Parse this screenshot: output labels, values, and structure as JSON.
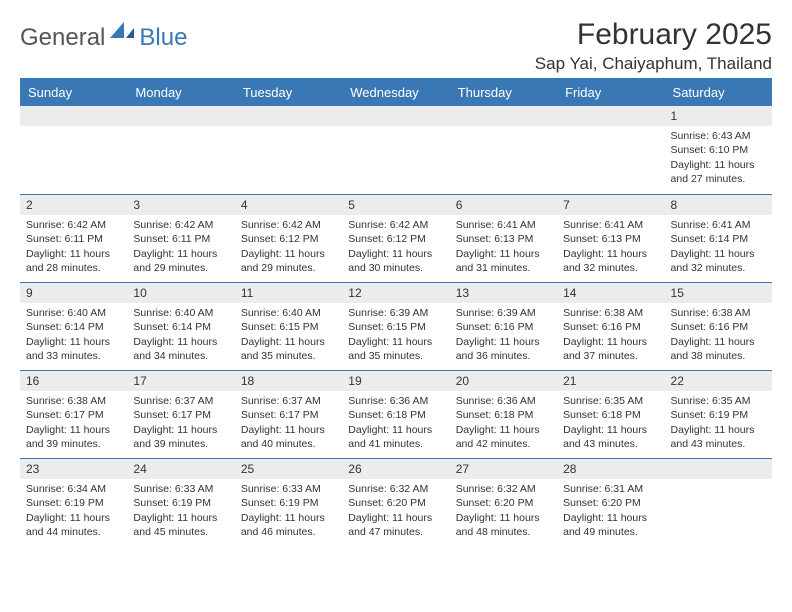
{
  "logo": {
    "general": "General",
    "blue": "Blue"
  },
  "header": {
    "month_title": "February 2025",
    "location": "Sap Yai, Chaiyaphum, Thailand"
  },
  "colors": {
    "brand": "#3a78b5",
    "daynum_bg": "#ececec",
    "text": "#333333",
    "bg": "#ffffff"
  },
  "typography": {
    "month_title_fontsize": 30,
    "location_fontsize": 17,
    "dayhead_fontsize": 13,
    "daynum_fontsize": 12,
    "body_fontsize": 10.5
  },
  "calendar": {
    "day_headers": [
      "Sunday",
      "Monday",
      "Tuesday",
      "Wednesday",
      "Thursday",
      "Friday",
      "Saturday"
    ],
    "weeks": [
      [
        {
          "empty": true
        },
        {
          "empty": true
        },
        {
          "empty": true
        },
        {
          "empty": true
        },
        {
          "empty": true
        },
        {
          "empty": true
        },
        {
          "daynum": "1",
          "sunrise": "Sunrise: 6:43 AM",
          "sunset": "Sunset: 6:10 PM",
          "daylight": "Daylight: 11 hours and 27 minutes."
        }
      ],
      [
        {
          "daynum": "2",
          "sunrise": "Sunrise: 6:42 AM",
          "sunset": "Sunset: 6:11 PM",
          "daylight": "Daylight: 11 hours and 28 minutes."
        },
        {
          "daynum": "3",
          "sunrise": "Sunrise: 6:42 AM",
          "sunset": "Sunset: 6:11 PM",
          "daylight": "Daylight: 11 hours and 29 minutes."
        },
        {
          "daynum": "4",
          "sunrise": "Sunrise: 6:42 AM",
          "sunset": "Sunset: 6:12 PM",
          "daylight": "Daylight: 11 hours and 29 minutes."
        },
        {
          "daynum": "5",
          "sunrise": "Sunrise: 6:42 AM",
          "sunset": "Sunset: 6:12 PM",
          "daylight": "Daylight: 11 hours and 30 minutes."
        },
        {
          "daynum": "6",
          "sunrise": "Sunrise: 6:41 AM",
          "sunset": "Sunset: 6:13 PM",
          "daylight": "Daylight: 11 hours and 31 minutes."
        },
        {
          "daynum": "7",
          "sunrise": "Sunrise: 6:41 AM",
          "sunset": "Sunset: 6:13 PM",
          "daylight": "Daylight: 11 hours and 32 minutes."
        },
        {
          "daynum": "8",
          "sunrise": "Sunrise: 6:41 AM",
          "sunset": "Sunset: 6:14 PM",
          "daylight": "Daylight: 11 hours and 32 minutes."
        }
      ],
      [
        {
          "daynum": "9",
          "sunrise": "Sunrise: 6:40 AM",
          "sunset": "Sunset: 6:14 PM",
          "daylight": "Daylight: 11 hours and 33 minutes."
        },
        {
          "daynum": "10",
          "sunrise": "Sunrise: 6:40 AM",
          "sunset": "Sunset: 6:14 PM",
          "daylight": "Daylight: 11 hours and 34 minutes."
        },
        {
          "daynum": "11",
          "sunrise": "Sunrise: 6:40 AM",
          "sunset": "Sunset: 6:15 PM",
          "daylight": "Daylight: 11 hours and 35 minutes."
        },
        {
          "daynum": "12",
          "sunrise": "Sunrise: 6:39 AM",
          "sunset": "Sunset: 6:15 PM",
          "daylight": "Daylight: 11 hours and 35 minutes."
        },
        {
          "daynum": "13",
          "sunrise": "Sunrise: 6:39 AM",
          "sunset": "Sunset: 6:16 PM",
          "daylight": "Daylight: 11 hours and 36 minutes."
        },
        {
          "daynum": "14",
          "sunrise": "Sunrise: 6:38 AM",
          "sunset": "Sunset: 6:16 PM",
          "daylight": "Daylight: 11 hours and 37 minutes."
        },
        {
          "daynum": "15",
          "sunrise": "Sunrise: 6:38 AM",
          "sunset": "Sunset: 6:16 PM",
          "daylight": "Daylight: 11 hours and 38 minutes."
        }
      ],
      [
        {
          "daynum": "16",
          "sunrise": "Sunrise: 6:38 AM",
          "sunset": "Sunset: 6:17 PM",
          "daylight": "Daylight: 11 hours and 39 minutes."
        },
        {
          "daynum": "17",
          "sunrise": "Sunrise: 6:37 AM",
          "sunset": "Sunset: 6:17 PM",
          "daylight": "Daylight: 11 hours and 39 minutes."
        },
        {
          "daynum": "18",
          "sunrise": "Sunrise: 6:37 AM",
          "sunset": "Sunset: 6:17 PM",
          "daylight": "Daylight: 11 hours and 40 minutes."
        },
        {
          "daynum": "19",
          "sunrise": "Sunrise: 6:36 AM",
          "sunset": "Sunset: 6:18 PM",
          "daylight": "Daylight: 11 hours and 41 minutes."
        },
        {
          "daynum": "20",
          "sunrise": "Sunrise: 6:36 AM",
          "sunset": "Sunset: 6:18 PM",
          "daylight": "Daylight: 11 hours and 42 minutes."
        },
        {
          "daynum": "21",
          "sunrise": "Sunrise: 6:35 AM",
          "sunset": "Sunset: 6:18 PM",
          "daylight": "Daylight: 11 hours and 43 minutes."
        },
        {
          "daynum": "22",
          "sunrise": "Sunrise: 6:35 AM",
          "sunset": "Sunset: 6:19 PM",
          "daylight": "Daylight: 11 hours and 43 minutes."
        }
      ],
      [
        {
          "daynum": "23",
          "sunrise": "Sunrise: 6:34 AM",
          "sunset": "Sunset: 6:19 PM",
          "daylight": "Daylight: 11 hours and 44 minutes."
        },
        {
          "daynum": "24",
          "sunrise": "Sunrise: 6:33 AM",
          "sunset": "Sunset: 6:19 PM",
          "daylight": "Daylight: 11 hours and 45 minutes."
        },
        {
          "daynum": "25",
          "sunrise": "Sunrise: 6:33 AM",
          "sunset": "Sunset: 6:19 PM",
          "daylight": "Daylight: 11 hours and 46 minutes."
        },
        {
          "daynum": "26",
          "sunrise": "Sunrise: 6:32 AM",
          "sunset": "Sunset: 6:20 PM",
          "daylight": "Daylight: 11 hours and 47 minutes."
        },
        {
          "daynum": "27",
          "sunrise": "Sunrise: 6:32 AM",
          "sunset": "Sunset: 6:20 PM",
          "daylight": "Daylight: 11 hours and 48 minutes."
        },
        {
          "daynum": "28",
          "sunrise": "Sunrise: 6:31 AM",
          "sunset": "Sunset: 6:20 PM",
          "daylight": "Daylight: 11 hours and 49 minutes."
        },
        {
          "empty": true
        }
      ]
    ]
  }
}
